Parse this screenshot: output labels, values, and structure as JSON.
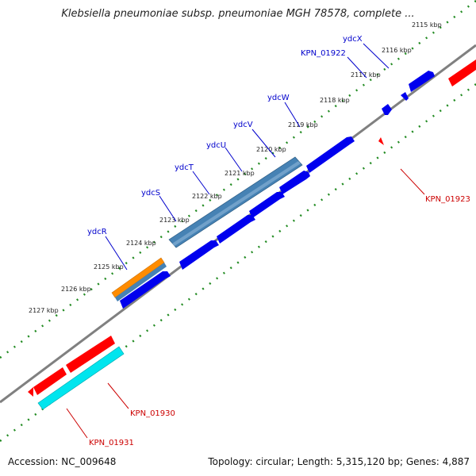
{
  "title": "Klebsiella pneumoniae subsp. pneumoniae MGH 78578, complete ...",
  "footer": {
    "accession": "Accession: NC_009648",
    "summary": "Topology: circular; Length: 5,315,120 bp; Genes: 4,887"
  },
  "colors": {
    "backbone": "#808080",
    "ticks": "#228b22",
    "forward_cds": "#0000ee",
    "reverse_cds": "#ff0000",
    "gene_steelblue": "#4682b4",
    "gene_orange": "#ff8c00",
    "gene_cyan": "#00e5ee",
    "forward_label": "#0000cc",
    "reverse_label": "#cc0000"
  },
  "scale_labels": [
    "2115 kbp",
    "2116 kbp",
    "2117 kbp",
    "2118 kbp",
    "2119 kbp",
    "2120 kbp",
    "2121 kbp",
    "2122 kbp",
    "2123 kbp",
    "2124 kbp",
    "2125 kbp",
    "2126 kbp",
    "2127 kbp"
  ],
  "forward_labels": [
    "ydcX",
    "KPN_01922",
    "ydcW",
    "ydcV",
    "ydcU",
    "ydcT",
    "ydcS",
    "ydcR"
  ],
  "reverse_labels": [
    "KPN_01923",
    "KPN_01930",
    "KPN_01931"
  ]
}
